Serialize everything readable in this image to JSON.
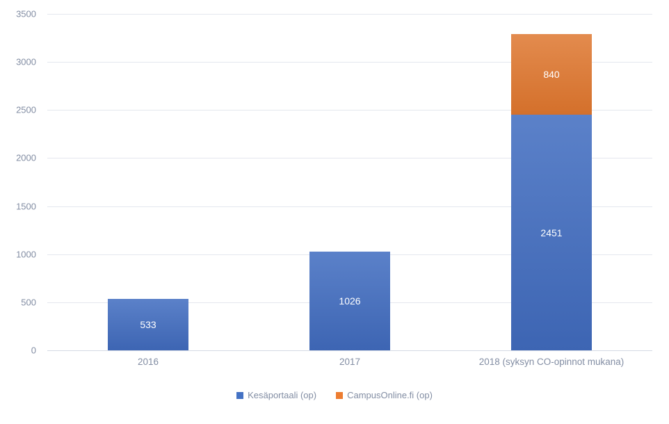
{
  "chart_data": {
    "type": "bar",
    "stacked": true,
    "title": "",
    "xlabel": "",
    "ylabel": "",
    "categories": [
      "2016",
      "2017",
      "2018 (syksyn CO-opinnot mukana)"
    ],
    "series": [
      {
        "name": "Kesäportaali (op)",
        "color": "#4472c4",
        "gradient_top": "#5b81c9",
        "gradient_bottom": "#3d65b3",
        "values": [
          533,
          1026,
          2451
        ]
      },
      {
        "name": "CampusOnline.fi (op)",
        "color": "#ed7d31",
        "gradient_top": "#e38b4e",
        "gradient_bottom": "#d4702b",
        "values": [
          0,
          0,
          840
        ]
      }
    ],
    "ylim": [
      0,
      3500
    ],
    "ytick_step": 500,
    "yticks": [
      0,
      500,
      1000,
      1500,
      2000,
      2500,
      3000,
      3500
    ],
    "grid": true,
    "legend_position": "bottom",
    "data_labels": true,
    "visible_data_labels": [
      "533",
      "1026",
      "2451",
      "840"
    ]
  },
  "colors": {
    "background": "#ffffff",
    "gridline": "#e4e7ee",
    "axis_line": "#d4d9e3",
    "tick_label": "#828da3",
    "data_label": "#ffffff"
  }
}
